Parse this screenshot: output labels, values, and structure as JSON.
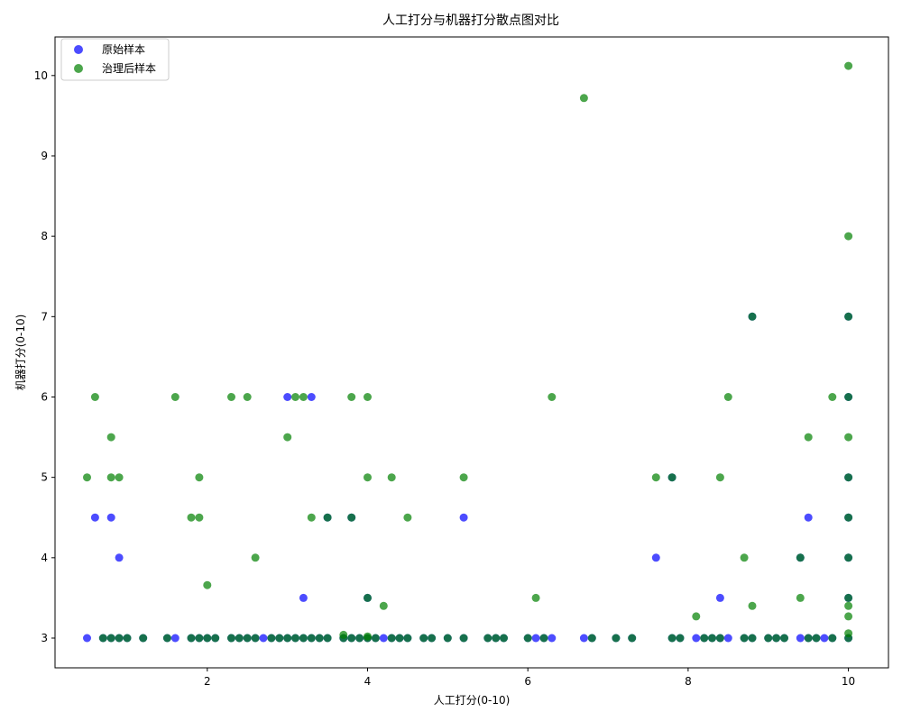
{
  "chart_data": {
    "type": "scatter",
    "title": "人工打分与机器打分散点图对比",
    "xlabel": "人工打分(0-10)",
    "ylabel": "机器打分(0-10)",
    "xlim": [
      0.1,
      10.5
    ],
    "ylim": [
      2.63,
      10.48
    ],
    "xticks": [
      2,
      4,
      6,
      8,
      10
    ],
    "yticks": [
      3,
      4,
      5,
      6,
      7,
      8,
      9,
      10
    ],
    "grid": false,
    "legend": "top-left",
    "series": [
      {
        "name": "原始样本",
        "color": "#0000ff",
        "points": [
          [
            0.5,
            3
          ],
          [
            0.6,
            4.5
          ],
          [
            0.7,
            3
          ],
          [
            0.8,
            4.5
          ],
          [
            0.8,
            3
          ],
          [
            0.9,
            4
          ],
          [
            0.9,
            3
          ],
          [
            1.0,
            3
          ],
          [
            1.2,
            3
          ],
          [
            1.5,
            3
          ],
          [
            1.6,
            3
          ],
          [
            1.8,
            3
          ],
          [
            1.9,
            3
          ],
          [
            2.0,
            3
          ],
          [
            2.1,
            3
          ],
          [
            2.3,
            3
          ],
          [
            2.4,
            3
          ],
          [
            2.5,
            3
          ],
          [
            2.6,
            3
          ],
          [
            2.7,
            3
          ],
          [
            2.8,
            3
          ],
          [
            2.9,
            3
          ],
          [
            3.0,
            6
          ],
          [
            3.0,
            3
          ],
          [
            3.1,
            3
          ],
          [
            3.2,
            3.5
          ],
          [
            3.2,
            3
          ],
          [
            3.3,
            6
          ],
          [
            3.3,
            3
          ],
          [
            3.4,
            3
          ],
          [
            3.5,
            4.5
          ],
          [
            3.5,
            3
          ],
          [
            3.7,
            3
          ],
          [
            3.8,
            4.5
          ],
          [
            3.8,
            3
          ],
          [
            3.9,
            3
          ],
          [
            4.0,
            3.5
          ],
          [
            4.0,
            3
          ],
          [
            4.1,
            3
          ],
          [
            4.2,
            3
          ],
          [
            4.3,
            3
          ],
          [
            4.4,
            3
          ],
          [
            4.5,
            3
          ],
          [
            4.7,
            3
          ],
          [
            4.8,
            3
          ],
          [
            5.0,
            3
          ],
          [
            5.2,
            4.5
          ],
          [
            5.2,
            3
          ],
          [
            5.5,
            3
          ],
          [
            5.6,
            3
          ],
          [
            5.7,
            3
          ],
          [
            6.0,
            3
          ],
          [
            6.1,
            3
          ],
          [
            6.2,
            3
          ],
          [
            6.3,
            3
          ],
          [
            6.7,
            3
          ],
          [
            6.8,
            3
          ],
          [
            7.1,
            3
          ],
          [
            7.3,
            3
          ],
          [
            7.6,
            4
          ],
          [
            7.8,
            5
          ],
          [
            7.8,
            3
          ],
          [
            7.9,
            3
          ],
          [
            8.1,
            3
          ],
          [
            8.2,
            3
          ],
          [
            8.3,
            3
          ],
          [
            8.4,
            3.5
          ],
          [
            8.4,
            3
          ],
          [
            8.5,
            3
          ],
          [
            8.7,
            3
          ],
          [
            8.8,
            7
          ],
          [
            8.8,
            3
          ],
          [
            9.0,
            3
          ],
          [
            9.1,
            3
          ],
          [
            9.2,
            3
          ],
          [
            9.4,
            4
          ],
          [
            9.4,
            3
          ],
          [
            9.5,
            4.5
          ],
          [
            9.5,
            3
          ],
          [
            9.6,
            3
          ],
          [
            9.7,
            3
          ],
          [
            9.8,
            3
          ],
          [
            10.0,
            7
          ],
          [
            10.0,
            6
          ],
          [
            10.0,
            5
          ],
          [
            10.0,
            4.5
          ],
          [
            10.0,
            4
          ],
          [
            10.0,
            3.5
          ],
          [
            10.0,
            3
          ]
        ]
      },
      {
        "name": "治理后样本",
        "color": "#008000",
        "points": [
          [
            0.5,
            5
          ],
          [
            0.6,
            6
          ],
          [
            0.7,
            3
          ],
          [
            0.8,
            5.5
          ],
          [
            0.8,
            5
          ],
          [
            0.8,
            3
          ],
          [
            0.9,
            5
          ],
          [
            0.9,
            3
          ],
          [
            1.0,
            3
          ],
          [
            1.2,
            3
          ],
          [
            1.5,
            3
          ],
          [
            1.6,
            6
          ],
          [
            1.8,
            4.5
          ],
          [
            1.8,
            3
          ],
          [
            1.9,
            5
          ],
          [
            1.9,
            4.5
          ],
          [
            1.9,
            3
          ],
          [
            2.0,
            3.66
          ],
          [
            2.0,
            3
          ],
          [
            2.1,
            3
          ],
          [
            2.3,
            6
          ],
          [
            2.3,
            3
          ],
          [
            2.4,
            3
          ],
          [
            2.5,
            6
          ],
          [
            2.5,
            3
          ],
          [
            2.6,
            4
          ],
          [
            2.6,
            3
          ],
          [
            2.8,
            3
          ],
          [
            2.9,
            3
          ],
          [
            3.0,
            5.5
          ],
          [
            3.0,
            3
          ],
          [
            3.1,
            6
          ],
          [
            3.1,
            3
          ],
          [
            3.2,
            6
          ],
          [
            3.2,
            3
          ],
          [
            3.3,
            4.5
          ],
          [
            3.3,
            3
          ],
          [
            3.4,
            3
          ],
          [
            3.5,
            4.5
          ],
          [
            3.5,
            3
          ],
          [
            3.7,
            3.04
          ],
          [
            3.7,
            3
          ],
          [
            3.8,
            6
          ],
          [
            3.8,
            4.5
          ],
          [
            3.8,
            3
          ],
          [
            3.9,
            3
          ],
          [
            4.0,
            6
          ],
          [
            4.0,
            5
          ],
          [
            4.0,
            3.5
          ],
          [
            4.0,
            3.02
          ],
          [
            4.0,
            3
          ],
          [
            4.1,
            3
          ],
          [
            4.2,
            3.4
          ],
          [
            4.3,
            5
          ],
          [
            4.3,
            3
          ],
          [
            4.4,
            3
          ],
          [
            4.5,
            4.5
          ],
          [
            4.5,
            3
          ],
          [
            4.7,
            3
          ],
          [
            4.8,
            3
          ],
          [
            5.0,
            3
          ],
          [
            5.2,
            5
          ],
          [
            5.2,
            3
          ],
          [
            5.5,
            3
          ],
          [
            5.6,
            3
          ],
          [
            5.7,
            3
          ],
          [
            6.0,
            3
          ],
          [
            6.1,
            3.5
          ],
          [
            6.2,
            3
          ],
          [
            6.3,
            6
          ],
          [
            6.7,
            9.72
          ],
          [
            6.8,
            3
          ],
          [
            7.1,
            3
          ],
          [
            7.3,
            3
          ],
          [
            7.6,
            5
          ],
          [
            7.8,
            5
          ],
          [
            7.8,
            3
          ],
          [
            7.9,
            3
          ],
          [
            8.1,
            3.27
          ],
          [
            8.2,
            3
          ],
          [
            8.3,
            3
          ],
          [
            8.4,
            5
          ],
          [
            8.4,
            3
          ],
          [
            8.5,
            6
          ],
          [
            8.7,
            4
          ],
          [
            8.7,
            3
          ],
          [
            8.8,
            7
          ],
          [
            8.8,
            3.4
          ],
          [
            8.8,
            3
          ],
          [
            9.0,
            3
          ],
          [
            9.1,
            3
          ],
          [
            9.2,
            3
          ],
          [
            9.4,
            4
          ],
          [
            9.4,
            3.5
          ],
          [
            9.5,
            5.5
          ],
          [
            9.5,
            3
          ],
          [
            9.6,
            3
          ],
          [
            9.8,
            6
          ],
          [
            9.8,
            3
          ],
          [
            10.0,
            10.12
          ],
          [
            10.0,
            8
          ],
          [
            10.0,
            7
          ],
          [
            10.0,
            6
          ],
          [
            10.0,
            5.5
          ],
          [
            10.0,
            5
          ],
          [
            10.0,
            4.5
          ],
          [
            10.0,
            4
          ],
          [
            10.0,
            3.5
          ],
          [
            10.0,
            3.4
          ],
          [
            10.0,
            3.27
          ],
          [
            10.0,
            3.06
          ],
          [
            10.0,
            3
          ]
        ]
      }
    ]
  }
}
